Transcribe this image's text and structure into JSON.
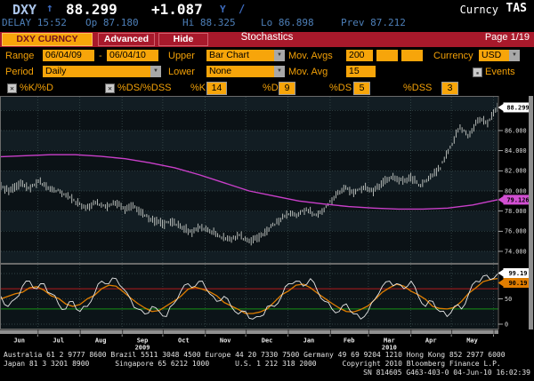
{
  "header": {
    "ticker": "DXY",
    "arrow": "↑",
    "price": "88.299",
    "change": "+1.087",
    "flag": "Y",
    "slash": "/",
    "sector": "Curncy",
    "function": "TAS",
    "delay": "DELAY 15:52",
    "open_label": "Op",
    "open": "87.180",
    "high_label": "Hi",
    "high": "88.325",
    "low_label": "Lo",
    "low": "86.898",
    "prev_label": "Prev",
    "prev": "87.212"
  },
  "menu": {
    "security": "DXY CURNCY",
    "advanced": "Advanced",
    "hide": "Hide",
    "title": "Stochastics",
    "page": "Page 1/19"
  },
  "form": {
    "range_label": "Range",
    "range_from": "06/04/09",
    "range_sep": "-",
    "range_to": "06/04/10",
    "upper_label": "Upper",
    "upper_value": "Bar Chart",
    "mov_avgs_label": "Mov. Avgs",
    "mov_avg_1": "200",
    "mov_avg_2": "",
    "mov_avg_3": "",
    "currency_label": "Currency",
    "currency_value": "USD",
    "period_label": "Period",
    "period_value": "Daily",
    "lower_label": "Lower",
    "lower_value": "None",
    "mov_avg_label": "Mov. Avg",
    "mov_avg_value": "15",
    "events_label": "Events",
    "events_checked": false,
    "kd_label": "%K/%D",
    "kd_checked": true,
    "dsdss_label": "%DS/%DSS",
    "dsdss_checked": true,
    "k_label": "%K",
    "k_value": "14",
    "d_label": "%D",
    "d_value": "9",
    "ds_label": "%DS",
    "ds_value": "5",
    "dss_label": "%DSS",
    "dss_value": "3"
  },
  "chart_data": {
    "type": "bar",
    "title": "Stochastics",
    "upper_panel": {
      "ylim": [
        72.85,
        89.45
      ],
      "yticks": [
        {
          "v": 86,
          "label": "86.000"
        },
        {
          "v": 84,
          "label": "84.000"
        },
        {
          "v": 82,
          "label": "82.000"
        },
        {
          "v": 80,
          "label": "80.000"
        },
        {
          "v": 78,
          "label": "78.000"
        },
        {
          "v": 76,
          "label": "76.000"
        },
        {
          "v": 74,
          "label": "74.000"
        }
      ],
      "gridline_values": [
        88,
        86,
        84,
        82,
        80,
        78,
        76,
        74
      ],
      "last_price": 88.299,
      "last_price_label": "88.299",
      "ma200_last": 79.126,
      "ma200_label": "79.126",
      "price_close": [
        80.4,
        80.0,
        80.8,
        80.3,
        81.0,
        80.2,
        80.0,
        79.5,
        78.8,
        78.3,
        78.9,
        78.4,
        78.9,
        78.2,
        78.5,
        77.6,
        77.0,
        76.7,
        77.0,
        76.3,
        75.9,
        76.4,
        76.0,
        75.5,
        75.2,
        75.6,
        74.9,
        75.4,
        76.2,
        77.0,
        77.8,
        77.6,
        78.2,
        77.6,
        78.3,
        79.5,
        80.3,
        79.8,
        80.4,
        80.0,
        80.8,
        81.4,
        81.0,
        81.3,
        80.5,
        81.5,
        82.3,
        84.2,
        86.3,
        85.5,
        87.2,
        86.8,
        88.299
      ],
      "ma200": [
        83.4,
        83.5,
        83.6,
        83.6,
        83.45,
        83.2,
        82.8,
        82.3,
        81.6,
        80.8,
        80.0,
        79.5,
        79.0,
        78.7,
        78.45,
        78.3,
        78.2,
        78.2,
        78.3,
        78.6,
        79.126
      ]
    },
    "lower_panel": {
      "ylim": [
        0,
        100
      ],
      "gridlines": [
        100,
        50,
        0
      ],
      "yticks": [
        {
          "v": 50,
          "label": "50"
        },
        {
          "v": 0,
          "label": "0"
        }
      ],
      "overbought": 70,
      "oversold": 30,
      "k_label": "99.19",
      "ds_label": "90.19",
      "k_values": [
        55,
        35,
        50,
        75,
        85,
        70,
        80,
        60,
        40,
        30,
        45,
        25,
        35,
        60,
        85,
        80,
        90,
        70,
        50,
        30,
        20,
        35,
        25,
        15,
        40,
        65,
        80,
        75,
        85,
        60,
        45,
        55,
        35,
        20,
        25,
        10,
        15,
        35,
        35,
        55,
        80,
        85,
        75,
        90,
        65,
        45,
        30,
        25,
        40,
        20,
        10,
        25,
        50,
        75,
        85,
        80,
        70,
        85,
        55,
        35,
        45,
        25,
        15,
        35,
        30,
        60,
        85,
        95,
        88,
        99.19
      ],
      "ds_values": [
        50,
        55,
        60,
        63,
        72,
        74,
        67,
        56,
        51,
        40,
        35,
        39,
        50,
        57,
        70,
        77,
        75,
        64,
        52,
        41,
        32,
        25,
        27,
        36,
        45,
        55,
        69,
        73,
        69,
        64,
        56,
        43,
        36,
        29,
        21,
        21,
        24,
        30,
        44,
        58,
        66,
        77,
        79,
        72,
        61,
        51,
        41,
        32,
        25,
        24,
        29,
        36,
        49,
        63,
        72,
        79,
        75,
        65,
        58,
        49,
        35,
        31,
        30,
        33,
        45,
        61,
        72,
        84,
        88,
        90.19
      ]
    },
    "x_axis": {
      "months": [
        "Jun",
        "Jul",
        "Aug",
        "Sep",
        "Oct",
        "Nov",
        "Dec",
        "Jan",
        "Feb",
        "Mar",
        "Apr",
        "May"
      ],
      "month_pos": [
        0.037,
        0.116,
        0.201,
        0.285,
        0.368,
        0.452,
        0.536,
        0.62,
        0.701,
        0.782,
        0.866,
        0.949
      ],
      "grid_pos": [
        0.074,
        0.159,
        0.244,
        0.326,
        0.411,
        0.493,
        0.578,
        0.663,
        0.74,
        0.825,
        0.907,
        0.992
      ],
      "years": [
        {
          "label": "2009",
          "pos": 0.285
        },
        {
          "label": "2010",
          "pos": 0.782
        }
      ]
    }
  },
  "footer": {
    "line1": "Australia 61 2 9777 8600 Brazil 5511 3048 4500 Europe 44 20 7330 7500 Germany 49 69 9204 1210 Hong Kong 852 2977 6000",
    "line2": "Japan 81 3 3201 8900      Singapore 65 6212 1000      U.S. 1 212 318 2000      Copyright 2010 Bloomberg Finance L.P.",
    "line3": "SN 814605 G463-403-0 04-Jun-10 16:02:39"
  },
  "colors": {
    "amber": "#f7a50a",
    "menu_red": "#a8192b",
    "delay_blue": "#4d7fb8",
    "bar_color": "#c6cac6",
    "ma_magenta": "#c93fc9",
    "stoch_k": "#e8e8e8",
    "stoch_ds": "#df7d00",
    "overbought": "#b31b1b",
    "oversold": "#169016",
    "grid": "#3e5252",
    "band_light": "#121d23",
    "band_dark": "#0b1216",
    "lower_bg": "#0c1418",
    "scrollbar": "#8f8f8f"
  }
}
